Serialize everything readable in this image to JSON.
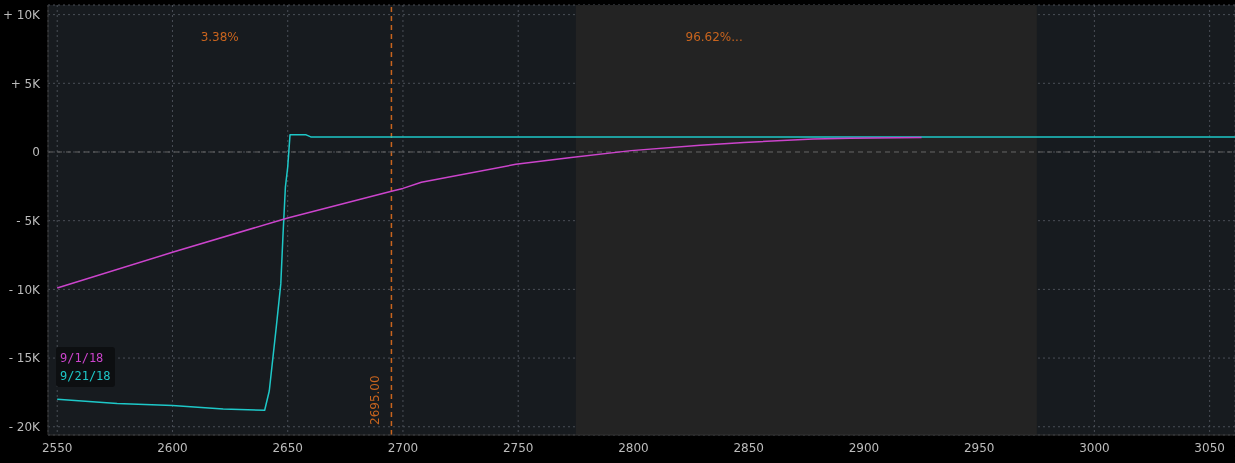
{
  "chart_data": {
    "type": "line",
    "xlim": [
      2546,
      3061
    ],
    "xticks": [
      2550,
      2600,
      2650,
      2700,
      2750,
      2800,
      2850,
      2900,
      2950,
      3000,
      3050
    ],
    "ylim": [
      -20600,
      10700
    ],
    "yticks": [
      {
        "value": 10000,
        "label": "+ 10K"
      },
      {
        "value": 5000,
        "label": "+ 5K"
      },
      0,
      {
        "value": -5000,
        "label": "- 5K"
      },
      {
        "value": -10000,
        "label": "- 10K"
      },
      {
        "value": -15000,
        "label": "- 15K"
      },
      {
        "value": -20000,
        "label": "- 20K"
      }
    ],
    "series": [
      {
        "name": "9/1/18",
        "color": "#cc44cc",
        "x": [
          2550,
          2600,
          2650,
          2695,
          2700,
          2708,
          2749,
          2773,
          2799,
          2829,
          2848,
          2878,
          2894,
          2925
        ],
        "values": [
          -9900,
          -7300,
          -4800,
          -2850,
          -2650,
          -2200,
          -900,
          -400,
          100,
          500,
          700,
          950,
          1000,
          1050
        ]
      },
      {
        "name": "9/21/18",
        "color": "#1ec8c8",
        "x": [
          2550,
          2576,
          2600,
          2622,
          2640,
          2642,
          2645,
          2647,
          2648,
          2649,
          2650,
          2651,
          2658,
          2660,
          3061
        ],
        "values": [
          -18000,
          -18300,
          -18450,
          -18700,
          -18800,
          -17400,
          -12800,
          -9600,
          -5900,
          -2550,
          -1100,
          1250,
          1250,
          1100,
          1100
        ]
      }
    ],
    "ref_lines": [
      {
        "axis": "x",
        "value": 2695,
        "label": "2695.00",
        "color": "#c8641e",
        "line_style": "dashed"
      },
      {
        "axis": "y",
        "value": 0,
        "color": "#666666",
        "line_style": "dashed"
      }
    ],
    "bands": [
      {
        "axis": "x",
        "from": 2775,
        "to": 2975,
        "color": "#232323"
      }
    ],
    "annotations": [
      "3.38%",
      "96.62%..."
    ],
    "grid": true,
    "legend": "bottom left",
    "marker": "none",
    "line_style": "solid"
  }
}
